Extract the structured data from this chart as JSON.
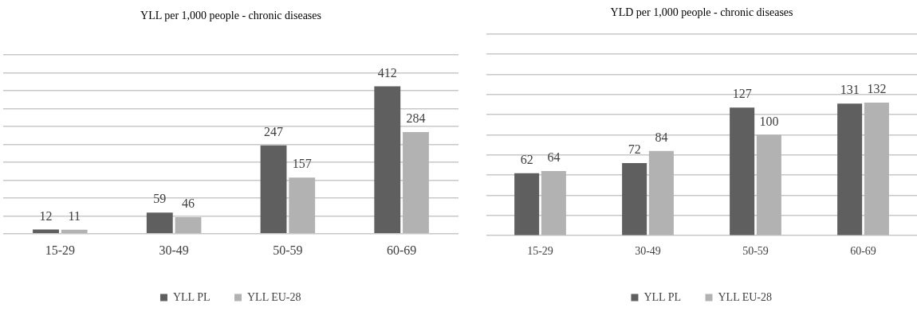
{
  "chart_data": [
    {
      "type": "bar",
      "title": "YLL per 1,000 people - chronic diseases",
      "categories": [
        "15-29",
        "30-49",
        "50-59",
        "60-69"
      ],
      "series": [
        {
          "name": "YLL PL",
          "color": "#5f5f5f",
          "values": [
            12,
            59,
            247,
            412
          ]
        },
        {
          "name": "YLL EU-28",
          "color": "#b2b2b2",
          "values": [
            11,
            46,
            157,
            284
          ]
        }
      ],
      "ylim": [
        0,
        500
      ],
      "tick_labels": "x",
      "grid": "y",
      "legend": "bottom",
      "data_labels": true
    },
    {
      "type": "bar",
      "title": "YLD per 1,000 people - chronic diseases",
      "categories": [
        "15-29",
        "30-49",
        "50-59",
        "60-69"
      ],
      "series": [
        {
          "name": "YLL PL",
          "color": "#5f5f5f",
          "values": [
            62,
            72,
            127,
            131
          ]
        },
        {
          "name": "YLL EU-28",
          "color": "#b2b2b2",
          "values": [
            64,
            84,
            100,
            132
          ]
        }
      ],
      "ylim": [
        0,
        200
      ],
      "tick_labels": "x",
      "grid": "y",
      "legend": "bottom",
      "data_labels": true
    }
  ]
}
